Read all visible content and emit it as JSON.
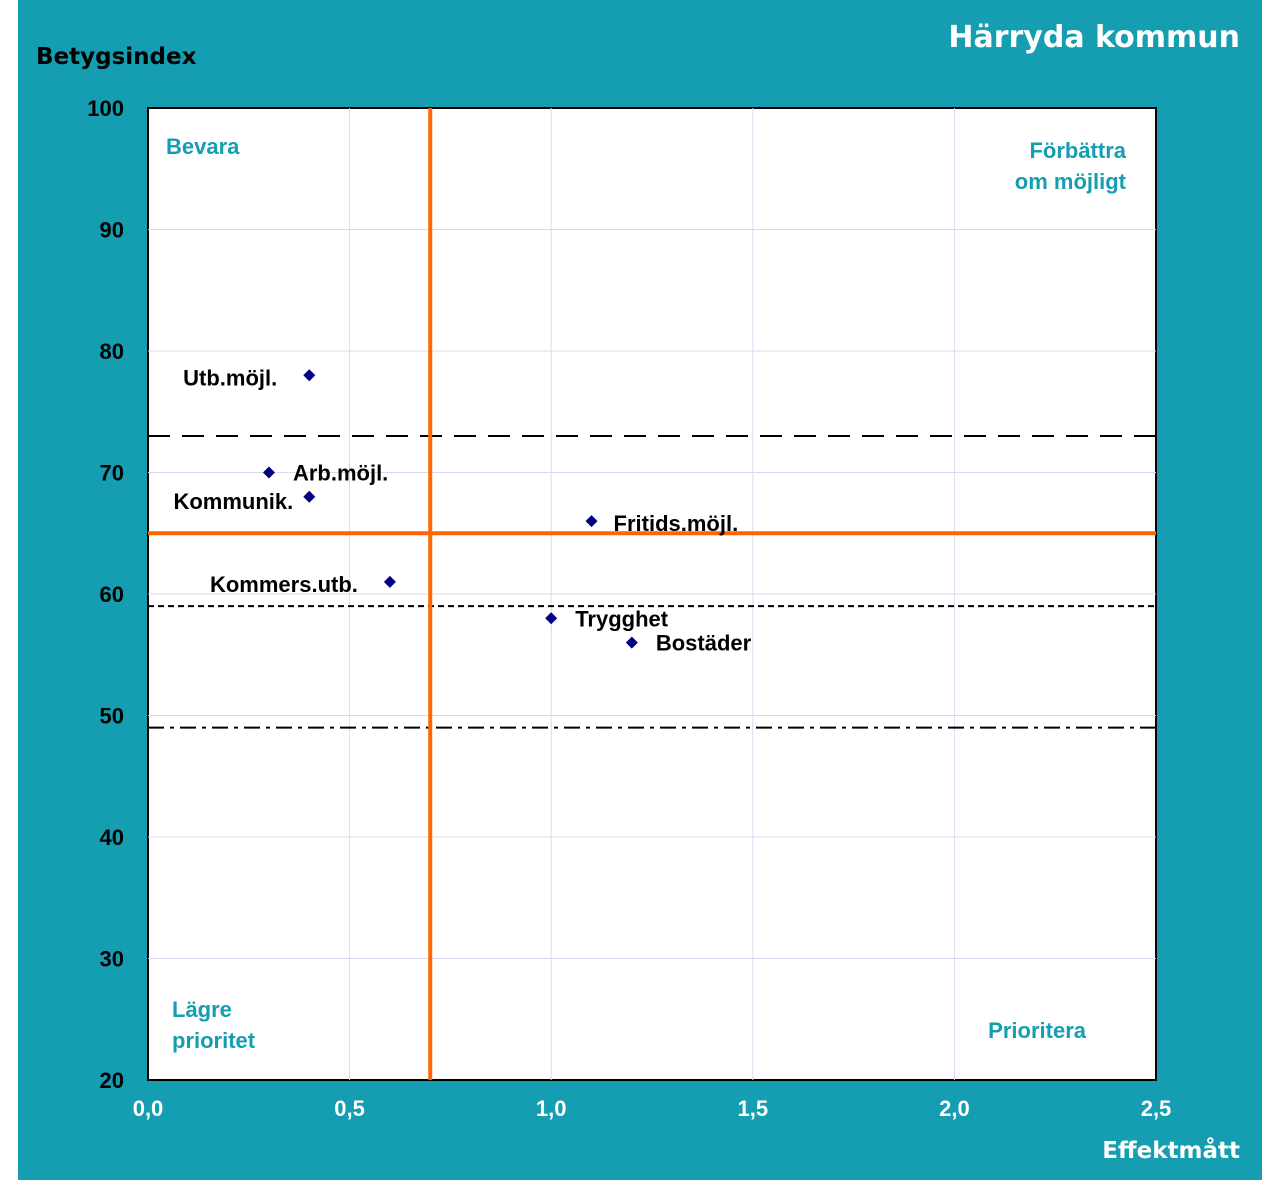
{
  "chart_data": {
    "type": "scatter",
    "title": "Härryda kommun",
    "xlabel": "Effektmått",
    "ylabel": "Betygsindex",
    "xlim": [
      0,
      2.5
    ],
    "ylim": [
      20,
      100
    ],
    "xticks": [
      "0,0",
      "0,5",
      "1,0",
      "1,5",
      "2,0",
      "2,5"
    ],
    "yticks": [
      "20",
      "30",
      "40",
      "50",
      "60",
      "70",
      "80",
      "90",
      "100"
    ],
    "grid": true,
    "points": [
      {
        "label": "Utb.möjl.",
        "x": 0.4,
        "y": 78
      },
      {
        "label": "Arb.möjl.",
        "x": 0.3,
        "y": 70
      },
      {
        "label": "Kommunik.",
        "x": 0.4,
        "y": 68
      },
      {
        "label": "Fritids.möjl.",
        "x": 1.1,
        "y": 66
      },
      {
        "label": "Kommers.utb.",
        "x": 0.6,
        "y": 61
      },
      {
        "label": "Trygghet",
        "x": 1.0,
        "y": 58
      },
      {
        "label": "Bostäder",
        "x": 1.2,
        "y": 56
      }
    ],
    "reference_lines": [
      {
        "orientation": "vertical",
        "value": 0.7,
        "style": "solid",
        "color": "#FF6600"
      },
      {
        "orientation": "horizontal",
        "value": 65,
        "style": "solid",
        "color": "#FF6600"
      },
      {
        "orientation": "horizontal",
        "value": 73,
        "style": "long-dash",
        "color": "#000000"
      },
      {
        "orientation": "horizontal",
        "value": 59,
        "style": "short-dash",
        "color": "#000000"
      },
      {
        "orientation": "horizontal",
        "value": 49,
        "style": "dash-dot",
        "color": "#000000"
      }
    ],
    "quadrant_labels": {
      "top_left": [
        "Bevara"
      ],
      "top_right": [
        "Förbättra",
        "om möjligt"
      ],
      "bottom_left": [
        "Lägre",
        "prioritet"
      ],
      "bottom_right": [
        "Prioritera"
      ]
    },
    "colors": {
      "background": "#159DB1",
      "plot_area": "#FFFFFF",
      "marker": "#000080",
      "quadrant_text": "#159DB1",
      "reference": "#FF6600"
    }
  }
}
